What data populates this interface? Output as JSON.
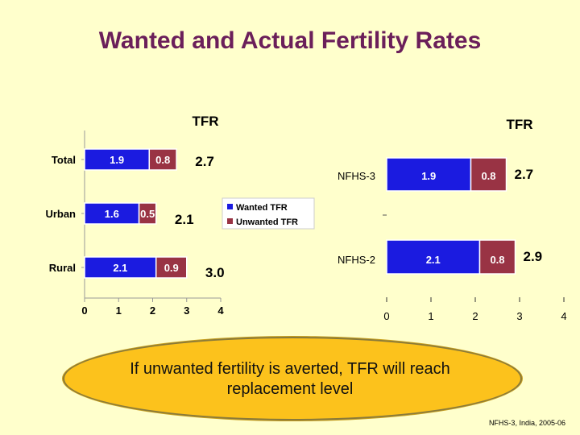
{
  "slide_title": "Wanted and Actual Fertility Rates",
  "callout": "If unwanted fertility is averted, TFR will reach replacement level",
  "source": "NFHS-3, India, 2005-06",
  "colors": {
    "wanted": "#1b1be0",
    "unwanted": "#993344"
  },
  "chart_data": [
    {
      "type": "bar",
      "orientation": "horizontal",
      "stacked": true,
      "title": "TFR",
      "categories": [
        "Total",
        "Urban",
        "Rural"
      ],
      "series": [
        {
          "name": "Wanted TFR",
          "values": [
            1.9,
            1.6,
            2.1
          ],
          "labels": [
            "1.9",
            "1.6",
            "2.1"
          ]
        },
        {
          "name": "Unwanted TFR",
          "values": [
            0.8,
            0.5,
            0.9
          ],
          "labels": [
            "0.8",
            "0.5",
            "0.9"
          ]
        }
      ],
      "totals": [
        "2.7",
        "2.1",
        "3.0"
      ],
      "xlim": [
        0,
        4
      ],
      "xticks": [
        "0",
        "1",
        "2",
        "3",
        "4"
      ],
      "legend": [
        "Wanted TFR",
        "Unwanted TFR"
      ],
      "legend_position": "right"
    },
    {
      "type": "bar",
      "orientation": "horizontal",
      "stacked": true,
      "title": "TFR",
      "categories": [
        "NFHS-3",
        "NFHS-2"
      ],
      "series": [
        {
          "name": "Wanted TFR",
          "values": [
            1.9,
            2.1
          ],
          "labels": [
            "1.9",
            "2.1"
          ]
        },
        {
          "name": "Unwanted TFR",
          "values": [
            0.8,
            0.8
          ],
          "labels": [
            "0.8",
            "0.8"
          ]
        }
      ],
      "totals": [
        "2.7",
        "2.9"
      ],
      "xlim": [
        0,
        4
      ],
      "xticks": [
        "0",
        "1",
        "2",
        "3",
        "4"
      ]
    }
  ]
}
